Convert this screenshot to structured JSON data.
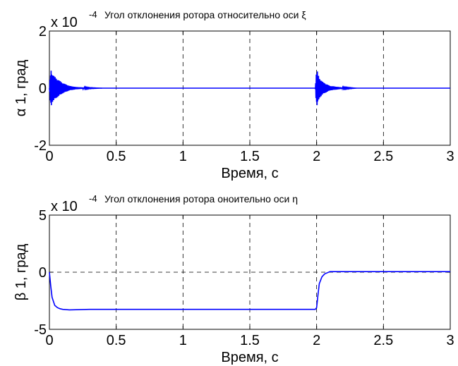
{
  "chart_data": [
    {
      "type": "line",
      "title": "Угол отклонения ротора относительно оси ξ",
      "xlabel": "Время, с",
      "ylabel": "α 1, град",
      "multiplier_base": "x 10",
      "multiplier_exp": "-4",
      "xlim": [
        0,
        3
      ],
      "ylim": [
        -2,
        2
      ],
      "xticks": [
        0,
        0.5,
        1,
        1.5,
        2,
        2.5,
        3
      ],
      "xtick_labels": [
        "0",
        "0.5",
        "1",
        "1.5",
        "2",
        "2.5",
        "3"
      ],
      "yticks": [
        -2,
        0,
        2
      ],
      "ytick_labels": [
        "-2",
        "0",
        "2"
      ],
      "grid": true,
      "series": [
        {
          "color": "#0000ff",
          "x": [
            0,
            0.01,
            0.02,
            0.05,
            0.1,
            0.15,
            0.2,
            0.3,
            0.4,
            1.0,
            1.5,
            1.99,
            2.0,
            2.01,
            2.02,
            2.05,
            2.1,
            2.2,
            2.3,
            2.5,
            3.0
          ],
          "y": [
            0,
            0.7,
            0.5,
            0.35,
            0.18,
            0.08,
            0.04,
            0.01,
            0,
            0,
            0,
            0,
            -0.7,
            -0.5,
            -0.35,
            -0.2,
            -0.08,
            -0.02,
            0,
            0,
            0
          ],
          "oscillating": true
        }
      ]
    },
    {
      "type": "line",
      "title": "Угол отклонения ротора оноительно оси η",
      "xlabel": "Время, с",
      "ylabel": "β 1, град",
      "multiplier_base": "x 10",
      "multiplier_exp": "-4",
      "xlim": [
        0,
        3
      ],
      "ylim": [
        -5,
        5
      ],
      "xticks": [
        0,
        0.5,
        1,
        1.5,
        2,
        2.5,
        3
      ],
      "xtick_labels": [
        "0",
        "0.5",
        "1",
        "1.5",
        "2",
        "2.5",
        "3"
      ],
      "yticks": [
        -5,
        0,
        5
      ],
      "ytick_labels": [
        "-5",
        "0",
        "5"
      ],
      "grid": true,
      "series": [
        {
          "color": "#0000ff",
          "x": [
            0,
            0.01,
            0.02,
            0.04,
            0.06,
            0.08,
            0.1,
            0.15,
            0.3,
            1.0,
            1.5,
            1.99,
            2.0,
            2.01,
            2.02,
            2.04,
            2.06,
            2.08,
            2.1,
            2.15,
            2.3,
            3.0
          ],
          "y": [
            0,
            -1.2,
            -2.2,
            -2.9,
            -3.1,
            -3.2,
            -3.25,
            -3.3,
            -3.25,
            -3.25,
            -3.25,
            -3.25,
            -3.1,
            -2.0,
            -1.0,
            -0.4,
            -0.15,
            -0.05,
            0.05,
            0.05,
            0.05,
            0.05
          ],
          "oscillating": false
        }
      ]
    }
  ]
}
